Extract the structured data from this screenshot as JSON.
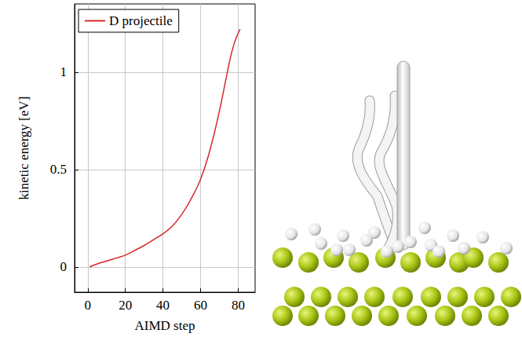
{
  "chart_data": {
    "type": "line",
    "x_label": "AIMD step",
    "y_label": "kinetic energy [eV]",
    "series": [
      {
        "name": "D projectile",
        "color": "#d62728",
        "x": [
          1,
          5,
          10,
          15,
          20,
          25,
          30,
          35,
          40,
          45,
          50,
          55,
          60,
          65,
          70,
          73,
          76,
          78,
          80,
          81
        ],
        "values": [
          0.0,
          0.015,
          0.03,
          0.045,
          0.06,
          0.085,
          0.11,
          0.14,
          0.17,
          0.21,
          0.27,
          0.35,
          0.45,
          0.6,
          0.8,
          0.94,
          1.08,
          1.15,
          1.2,
          1.22
        ]
      }
    ],
    "xlim": [
      -7,
      89
    ],
    "xticks": [
      0,
      20,
      40,
      60,
      80
    ],
    "ylim": [
      -0.13,
      1.35
    ],
    "yticks": [
      0,
      0.5,
      1
    ],
    "grid": true,
    "legend": "upper left"
  }
}
